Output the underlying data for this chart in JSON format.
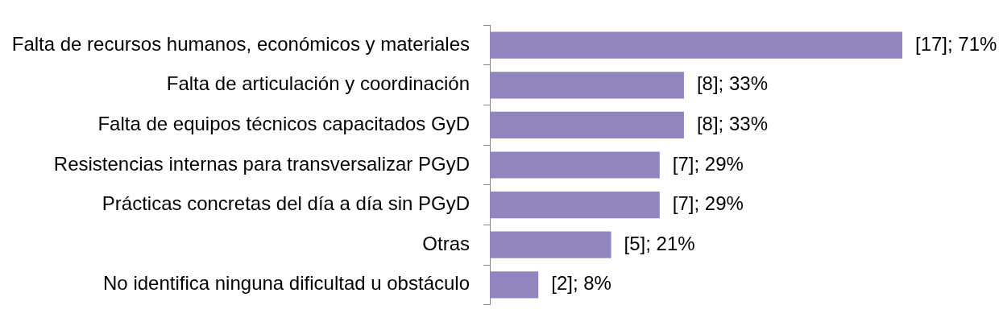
{
  "chart_data": {
    "type": "bar",
    "orientation": "horizontal",
    "categories": [
      "Falta de recursos humanos, económicos y materiales",
      "Falta de articulación y coordinación",
      "Falta de equipos técnicos capacitados GyD",
      "Resistencias internas para transversalizar PGyD",
      "Prácticas concretas del día a día sin PGyD",
      "Otras",
      "No identifica ninguna dificultad u obstáculo"
    ],
    "values": [
      17,
      8,
      8,
      7,
      7,
      5,
      2
    ],
    "value_labels": [
      "[17]; 71%",
      "[8]; 33%",
      "[8]; 33%",
      "[7]; 29%",
      "[7]; 29%",
      "[5]; 21%",
      "[2]; 8%"
    ],
    "color": "#9285bf",
    "tick_labels": "y",
    "legend": false
  }
}
